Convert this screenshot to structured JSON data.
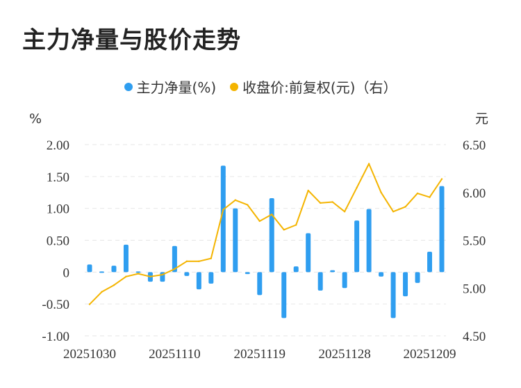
{
  "chart_data": {
    "type": "bar+line",
    "title": "主力净量与股价走势",
    "legend": [
      {
        "name": "主力净量(%)",
        "color": "#2f9ef0"
      },
      {
        "name": "收盘价:前复权(元)（右）",
        "color": "#f4b400"
      }
    ],
    "y_left_unit": "%",
    "y_right_unit": "元",
    "y_left_range": [
      -1.0,
      2.0
    ],
    "y_right_range": [
      4.5,
      6.5
    ],
    "y_left_ticks": [
      "2.00",
      "1.50",
      "1.00",
      "0.50",
      "0",
      "-0.50",
      "-1.00"
    ],
    "y_right_ticks": [
      "6.50",
      "6.00",
      "5.50",
      "5.00",
      "4.50"
    ],
    "x_tick_labels": [
      {
        "index": 0,
        "label": "20251030"
      },
      {
        "index": 7,
        "label": "20251110"
      },
      {
        "index": 14,
        "label": "20251119"
      },
      {
        "index": 21,
        "label": "20251128"
      },
      {
        "index": 28,
        "label": "20251209"
      }
    ],
    "grid": "horizontal-dashed",
    "series": [
      {
        "name": "主力净量(%)",
        "type": "bar",
        "values": [
          0.12,
          -0.02,
          0.1,
          0.43,
          0.0,
          -0.15,
          -0.15,
          0.41,
          -0.06,
          -0.27,
          -0.18,
          1.67,
          1.0,
          -0.03,
          -0.36,
          1.16,
          -0.72,
          0.09,
          0.61,
          -0.29,
          0.03,
          -0.25,
          0.81,
          0.99,
          -0.07,
          -0.72,
          -0.38,
          -0.17,
          0.32,
          1.35
        ]
      },
      {
        "name": "收盘价:前复权(元)",
        "type": "line",
        "values": [
          4.83,
          4.96,
          5.03,
          5.12,
          5.15,
          5.12,
          5.14,
          5.2,
          5.28,
          5.28,
          5.31,
          5.82,
          5.92,
          5.87,
          5.7,
          5.77,
          5.61,
          5.66,
          6.02,
          5.89,
          5.9,
          5.8,
          6.05,
          6.3,
          6.0,
          5.8,
          5.85,
          5.99,
          5.95,
          6.14
        ]
      }
    ]
  }
}
